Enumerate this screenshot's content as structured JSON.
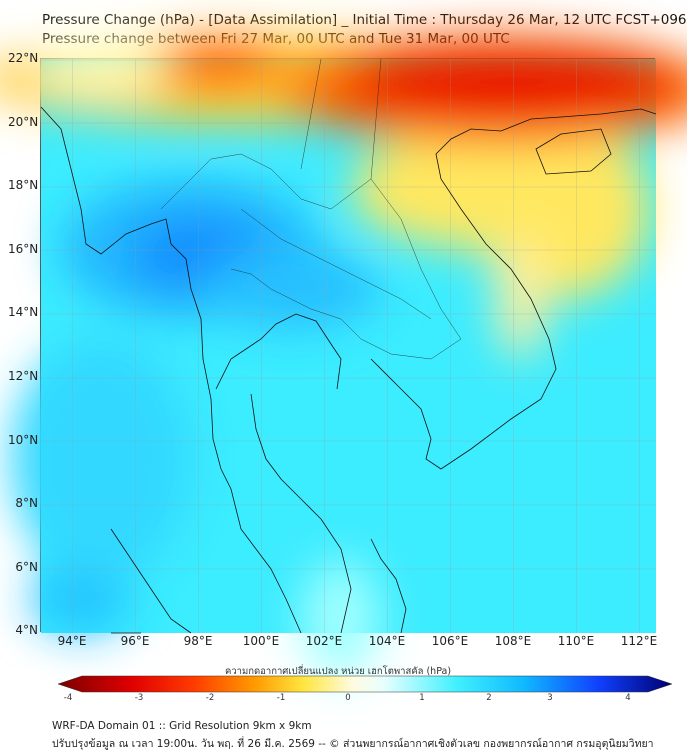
{
  "header": {
    "title_line1": "Pressure Change (hPa) - [Data Assimilation] _ Initial Time : Thursday 26 Mar, 12 UTC FCST+096",
    "title_line2": "Pressure change between Fri 27 Mar, 00 UTC and Tue 31 Mar, 00 UTC"
  },
  "map": {
    "lat_labels": [
      "22°N",
      "20°N",
      "18°N",
      "16°N",
      "14°N",
      "12°N",
      "10°N",
      "8°N",
      "6°N",
      "4°N"
    ],
    "lon_labels": [
      "94°E",
      "96°E",
      "98°E",
      "100°E",
      "102°E",
      "104°E",
      "106°E",
      "108°E",
      "110°E",
      "112°E"
    ],
    "lon_range": [
      93,
      112.5
    ],
    "lat_range": [
      4,
      22
    ]
  },
  "colorbar": {
    "label": "ความกดอากาศเปลี่ยนแปลง หน่วย เฮกโตพาสคัล (hPa)",
    "ticks": [
      "-4",
      "-3",
      "-2",
      "-1",
      "0",
      "1",
      "2",
      "3",
      "4"
    ],
    "range": [
      -4.25,
      4.25
    ],
    "colors": [
      "#7a0000",
      "#e00000",
      "#ff3a00",
      "#ff9a00",
      "#ffe640",
      "#fffbe0",
      "#e8ffff",
      "#40f0ff",
      "#10b8ff",
      "#1040ff",
      "#000070"
    ]
  },
  "footer": {
    "line1": "WRF-DA Domain 01 :: Grid Resolution 9km x 9km",
    "line2": "ปรับปรุงข้อมูล ณ เวลา 19:00น. วัน พฤ. ที่ 26 มี.ค. 2569 -- © ส่วนพยากรณ์อากาศเชิงตัวเลข กองพยากรณ์อากาศ กรมอุตุนิยมวิทยา"
  }
}
